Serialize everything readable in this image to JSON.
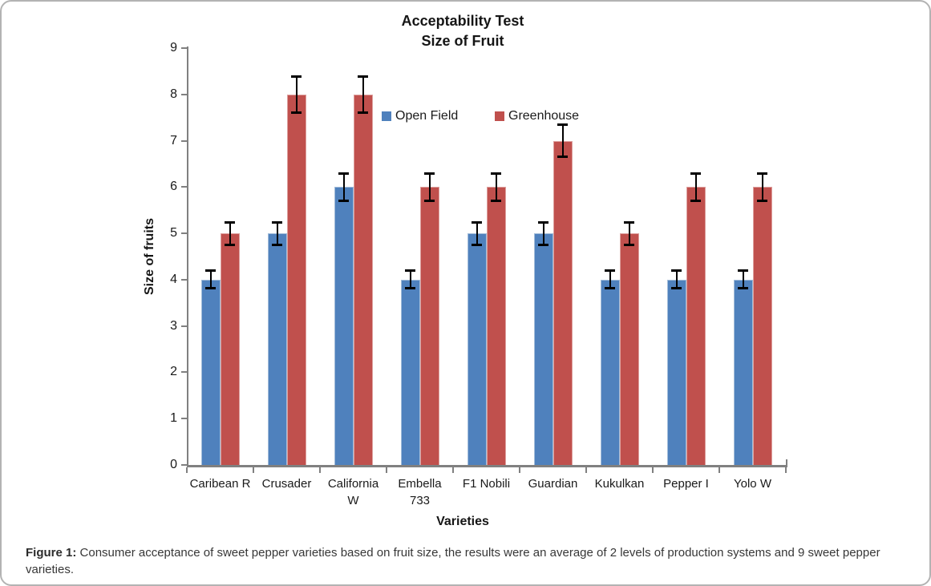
{
  "frame": {
    "background": "#ffffff",
    "border_color": "#b3b3b3"
  },
  "chart_data": {
    "type": "bar",
    "title_line1": "Acceptability Test",
    "title_line2": "Size of Fruit",
    "xlabel": "Varieties",
    "ylabel": "Size of fruits",
    "ylim": [
      0,
      9
    ],
    "yticks": [
      0,
      1,
      2,
      3,
      4,
      5,
      6,
      7,
      8,
      9
    ],
    "grid": false,
    "legend_position": "top-center-inside",
    "axis_color": "#808080",
    "error_bar_color": "#000000",
    "categories": [
      "Caribean R",
      "Crusader",
      "California W",
      "Embella 733",
      "F1 Nobili",
      "Guardian",
      "Kukulkan",
      "Pepper I",
      "Yolo W"
    ],
    "series": [
      {
        "name": "Open Field",
        "color": "#4f81bd",
        "edge_color": "#a2bcd9",
        "values": [
          4,
          5,
          6,
          4,
          5,
          5,
          4,
          4,
          4
        ],
        "errors": [
          0.2,
          0.25,
          0.3,
          0.2,
          0.25,
          0.25,
          0.2,
          0.2,
          0.2
        ]
      },
      {
        "name": "Greenhouse",
        "color": "#c0504d",
        "edge_color": "#dda09e",
        "values": [
          5,
          8,
          8,
          6,
          6,
          7,
          5,
          6,
          6
        ],
        "errors": [
          0.25,
          0.4,
          0.4,
          0.3,
          0.3,
          0.35,
          0.25,
          0.3,
          0.3
        ]
      }
    ]
  },
  "caption": {
    "label": "Figure 1:",
    "text": "Consumer acceptance of sweet pepper varieties based on fruit size, the results were an average of 2 levels of production systems and 9 sweet pepper varieties."
  }
}
